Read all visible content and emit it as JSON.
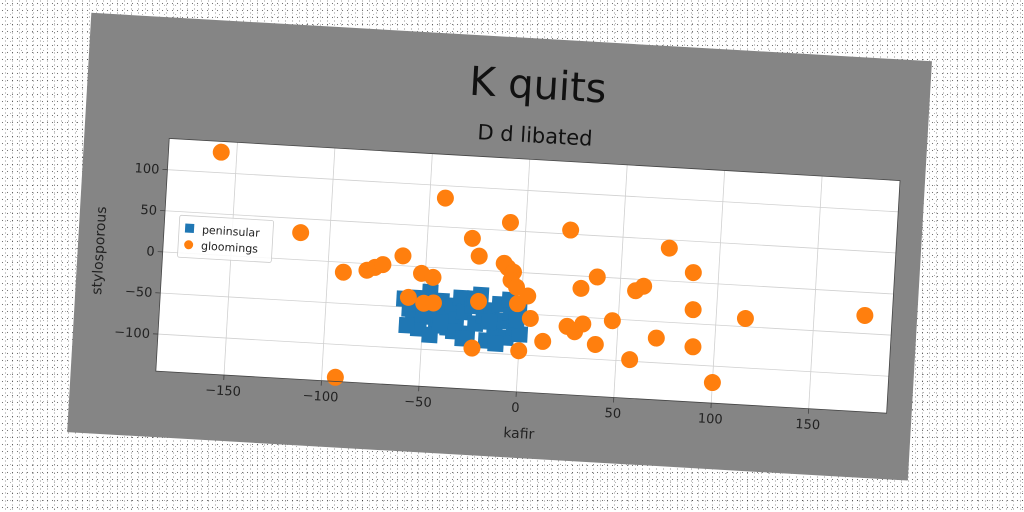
{
  "chart_data": {
    "type": "scatter",
    "title": "K quits",
    "subtitle": "D d libated",
    "xlabel": "kafir",
    "ylabel": "stylosporous",
    "xlim": [
      -185,
      190
    ],
    "ylim": [
      -145,
      138
    ],
    "xticks": [
      -150,
      -100,
      -50,
      0,
      50,
      100,
      150
    ],
    "yticks": [
      -100,
      -50,
      0,
      50,
      100
    ],
    "xtick_labels": [
      "−150",
      "−100",
      "−50",
      "0",
      "50",
      "100",
      "150"
    ],
    "ytick_labels": [
      "−100",
      "−50",
      "0",
      "50",
      "100"
    ],
    "grid": true,
    "legend_position": "center-left",
    "series": [
      {
        "name": "peninsular",
        "marker": "square",
        "color": "#1f77b4",
        "points": [
          [
            -60,
            -40
          ],
          [
            -57,
            -52
          ],
          [
            -55,
            -65
          ],
          [
            -52,
            -75
          ],
          [
            -49,
            -48
          ],
          [
            -47,
            -30
          ],
          [
            -45,
            -60
          ],
          [
            -43,
            -70
          ],
          [
            -41,
            -40
          ],
          [
            -39,
            -55
          ],
          [
            -37,
            -72
          ],
          [
            -35,
            -45
          ],
          [
            -33,
            -62
          ],
          [
            -31,
            -35
          ],
          [
            -29,
            -52
          ],
          [
            -27,
            -78
          ],
          [
            -25,
            -44
          ],
          [
            -23,
            -65
          ],
          [
            -21,
            -30
          ],
          [
            -19,
            -55
          ],
          [
            -17,
            -85
          ],
          [
            -15,
            -48
          ],
          [
            -13,
            -70
          ],
          [
            -11,
            -40
          ],
          [
            -9,
            -60
          ],
          [
            -7,
            -80
          ],
          [
            -5,
            -50
          ],
          [
            -3,
            -68
          ],
          [
            -1,
            -42
          ],
          [
            0,
            -75
          ],
          [
            -58,
            -72
          ],
          [
            -46,
            -82
          ],
          [
            -34,
            -76
          ],
          [
            -24,
            -35
          ],
          [
            -12,
            -88
          ],
          [
            -2,
            -58
          ],
          [
            -53,
            -38
          ],
          [
            -41,
            -66
          ],
          [
            -29,
            -84
          ],
          [
            -16,
            -62
          ],
          [
            -6,
            -34
          ],
          [
            -50,
            -58
          ]
        ]
      },
      {
        "name": "gloomings",
        "marker": "circle",
        "color": "#ff7f0e",
        "points": [
          [
            -158,
            125
          ],
          [
            -115,
            33
          ],
          [
            -92,
            -12
          ],
          [
            -80,
            -8
          ],
          [
            -76,
            -4
          ],
          [
            -72,
            0
          ],
          [
            -62,
            12
          ],
          [
            -58,
            -38
          ],
          [
            -52,
            -8
          ],
          [
            -50,
            -44
          ],
          [
            -46,
            -12
          ],
          [
            -45,
            -43
          ],
          [
            -42,
            85
          ],
          [
            -27,
            38
          ],
          [
            -23,
            17
          ],
          [
            -22,
            -38
          ],
          [
            -24,
            -95
          ],
          [
            -8,
            60
          ],
          [
            -10,
            10
          ],
          [
            -8,
            5
          ],
          [
            -5,
            0
          ],
          [
            -6,
            -10
          ],
          [
            -3,
            -18
          ],
          [
            -2,
            -38
          ],
          [
            0,
            -95
          ],
          [
            3,
            -28
          ],
          [
            5,
            -55
          ],
          [
            12,
            -82
          ],
          [
            23,
            55
          ],
          [
            24,
            -62
          ],
          [
            28,
            -68
          ],
          [
            30,
            -15
          ],
          [
            32,
            -58
          ],
          [
            38,
            0
          ],
          [
            39,
            -82
          ],
          [
            47,
            -52
          ],
          [
            57,
            -98
          ],
          [
            58,
            -14
          ],
          [
            62,
            -8
          ],
          [
            70,
            -70
          ],
          [
            74,
            40
          ],
          [
            87,
            12
          ],
          [
            88,
            -33
          ],
          [
            89,
            -78
          ],
          [
            100,
            -120
          ],
          [
            115,
            -40
          ],
          [
            176,
            -28
          ],
          [
            -93,
            -140
          ]
        ]
      }
    ]
  }
}
